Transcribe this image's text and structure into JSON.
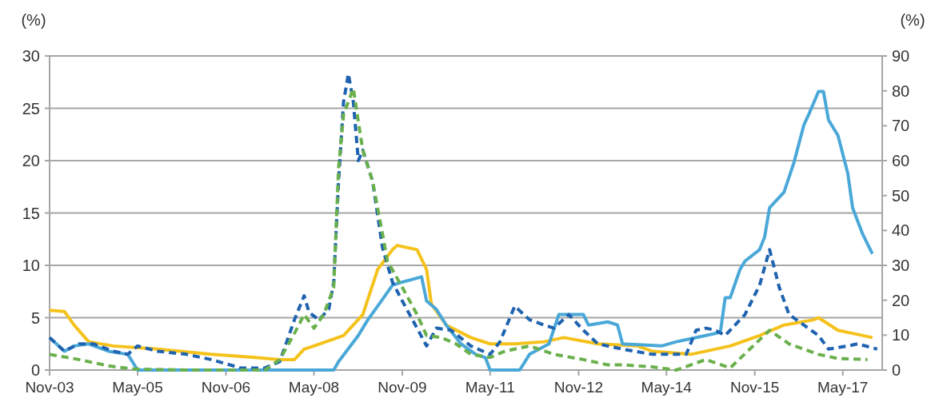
{
  "chart_data": {
    "type": "line",
    "ylabel": "(%)",
    "y2label": "(%)",
    "xlim": [
      "2003-11",
      "2018-01"
    ],
    "xticks": [
      {
        "value": "2003-11",
        "label": "Nov-03"
      },
      {
        "value": "2005-05",
        "label": "May-05"
      },
      {
        "value": "2006-11",
        "label": "Nov-06"
      },
      {
        "value": "2008-05",
        "label": "May-08"
      },
      {
        "value": "2009-11",
        "label": "Nov-09"
      },
      {
        "value": "2011-05",
        "label": "May-11"
      },
      {
        "value": "2012-11",
        "label": "Nov-12"
      },
      {
        "value": "2014-05",
        "label": "May-14"
      },
      {
        "value": "2015-11",
        "label": "Nov-15"
      },
      {
        "value": "2017-05",
        "label": "May-17"
      }
    ],
    "ylim": [
      0,
      30
    ],
    "yticks": [
      0,
      5,
      10,
      15,
      20,
      25,
      30
    ],
    "y2lim": [
      0,
      90
    ],
    "y2ticks": [
      0,
      10,
      20,
      30,
      40,
      50,
      60,
      70,
      80,
      90
    ],
    "grid": "y",
    "series": [
      {
        "color": "#f5c21b",
        "line_style": "solid",
        "x": [
          "2003-11",
          "2004-02",
          "2004-04",
          "2004-07",
          "2004-12",
          "2005-09",
          "2006-08",
          "2007-05",
          "2007-10",
          "2008-01",
          "2008-03",
          "2008-05",
          "2008-11",
          "2009-03",
          "2009-06",
          "2009-09",
          "2009-10",
          "2010-02",
          "2010-04",
          "2010-05",
          "2010-08",
          "2011-01",
          "2011-05",
          "2011-10",
          "2012-04",
          "2012-08",
          "2013-03",
          "2013-11",
          "2014-02",
          "2014-10",
          "2015-06",
          "2015-12",
          "2016-05",
          "2016-11",
          "2016-12",
          "2017-04",
          "2017-07",
          "2017-11"
        ],
        "values": [
          5.7,
          5.6,
          4.3,
          2.7,
          2.3,
          2.0,
          1.5,
          1.2,
          1.0,
          1.0,
          2.0,
          2.3,
          3.3,
          5.3,
          9.6,
          11.5,
          11.9,
          11.5,
          9.6,
          6.3,
          4.3,
          3.1,
          2.5,
          2.5,
          2.7,
          3.1,
          2.5,
          2.3,
          1.8,
          1.5,
          2.3,
          3.3,
          4.3,
          4.8,
          5.0,
          3.8,
          3.5,
          3.1
        ]
      },
      {
        "color": "#4aa8d8",
        "line_style": "solid",
        "x": [
          "2003-11",
          "2004-02",
          "2004-04",
          "2004-07",
          "2004-11",
          "2005-03",
          "2005-05",
          "2008-09",
          "2008-10",
          "2009-02",
          "2009-04",
          "2009-06",
          "2009-09",
          "2009-11",
          "2010-03",
          "2010-04",
          "2010-06",
          "2010-08",
          "2010-11",
          "2011-02",
          "2011-04",
          "2011-05",
          "2011-11",
          "2012-01",
          "2012-05",
          "2012-07",
          "2012-12",
          "2013-01",
          "2013-05",
          "2013-07",
          "2013-08",
          "2014-04",
          "2014-07",
          "2014-09",
          "2015-01",
          "2015-04",
          "2015-05",
          "2015-06",
          "2015-08",
          "2015-09",
          "2015-12",
          "2016-01",
          "2016-02",
          "2016-05",
          "2016-07",
          "2016-09",
          "2016-10",
          "2016-12",
          "2017-01",
          "2017-02",
          "2017-04",
          "2017-06",
          "2017-07",
          "2017-09",
          "2017-11"
        ],
        "values": [
          3.1,
          1.8,
          2.3,
          2.5,
          1.8,
          1.5,
          0,
          0,
          0.8,
          3.3,
          4.8,
          6.1,
          8.1,
          8.4,
          8.9,
          6.6,
          5.8,
          4.3,
          2.5,
          1.5,
          1.2,
          0,
          0,
          1.5,
          2.5,
          5.3,
          5.3,
          4.3,
          4.6,
          4.3,
          2.5,
          2.3,
          2.7,
          2.9,
          3.3,
          3.6,
          6.9,
          6.9,
          9.6,
          10.4,
          11.5,
          12.7,
          15.5,
          17,
          19.8,
          23.4,
          24.4,
          26.6,
          26.6,
          23.9,
          22.4,
          18.8,
          15.5,
          13,
          11.1
        ]
      },
      {
        "color": "#1f63b0",
        "line_style": "dashed",
        "x": [
          "2003-11",
          "2004-02",
          "2004-05",
          "2004-08",
          "2004-12",
          "2005-03",
          "2005-05",
          "2005-09",
          "2006-03",
          "2006-08",
          "2007-02",
          "2007-07",
          "2007-10",
          "2008-01",
          "2008-03",
          "2008-04",
          "2008-06",
          "2008-08",
          "2008-09",
          "2008-10",
          "2008-11",
          "2008-12",
          "2009-01",
          "2009-02",
          "2009-03",
          "2009-05",
          "2009-07",
          "2009-09",
          "2009-11",
          "2010-02",
          "2010-04",
          "2010-06",
          "2010-09",
          "2011-01",
          "2011-05",
          "2011-07",
          "2011-10",
          "2012-01",
          "2012-04",
          "2012-06",
          "2012-09",
          "2012-12",
          "2013-03",
          "2013-08",
          "2014-02",
          "2014-09",
          "2014-11",
          "2015-01",
          "2015-03",
          "2015-05",
          "2015-09",
          "2015-12",
          "2016-02",
          "2016-04",
          "2016-06",
          "2016-09",
          "2016-12",
          "2017-02",
          "2017-06",
          "2017-08",
          "2017-12"
        ],
        "values": [
          3.1,
          1.8,
          2.5,
          2.5,
          1.8,
          1.5,
          2.3,
          1.8,
          1.5,
          1.0,
          0.2,
          0.2,
          0.8,
          4.8,
          7.1,
          5.5,
          4.8,
          5.8,
          8.4,
          18,
          25.6,
          28.3,
          25.6,
          20,
          21,
          18,
          11.7,
          8.4,
          6.6,
          4,
          2.3,
          4,
          3.8,
          2.3,
          1.5,
          2.7,
          6.1,
          4.8,
          4.3,
          4,
          5.3,
          3.8,
          2.5,
          2.0,
          1.5,
          1.5,
          3.8,
          4,
          3.8,
          3.3,
          5.3,
          8.1,
          11.5,
          7.9,
          5.3,
          4.3,
          3.3,
          2.0,
          2.3,
          2.5,
          2.0
        ]
      },
      {
        "color": "#6ab04c",
        "line_style": "dashed",
        "x": [
          "2003-11",
          "2004-05",
          "2004-11",
          "2005-04",
          "2006-03",
          "2007-07",
          "2007-10",
          "2008-01",
          "2008-03",
          "2008-05",
          "2008-07",
          "2008-09",
          "2008-10",
          "2008-11",
          "2009-01",
          "2009-02",
          "2009-03",
          "2009-05",
          "2009-07",
          "2009-08",
          "2009-11",
          "2010-02",
          "2010-04",
          "2010-07",
          "2010-10",
          "2011-01",
          "2011-05",
          "2011-08",
          "2012-01",
          "2012-06",
          "2012-12",
          "2013-05",
          "2013-08",
          "2014-02",
          "2014-07",
          "2015-01",
          "2015-06",
          "2015-10",
          "2016-02",
          "2016-06",
          "2016-12",
          "2017-04",
          "2017-10"
        ],
        "values": [
          1.5,
          1.0,
          0.4,
          0.1,
          0,
          0,
          1.0,
          3.5,
          5.3,
          4,
          5.3,
          7.9,
          19.3,
          24.4,
          26.9,
          23.7,
          21,
          18,
          13,
          10.4,
          7.9,
          5.3,
          3.3,
          3.1,
          2.5,
          1.5,
          1.2,
          1.8,
          2.3,
          1.5,
          1.0,
          0.5,
          0.5,
          0.3,
          0,
          1.0,
          0.2,
          2,
          3.8,
          2.5,
          1.5,
          1.1,
          1.0
        ]
      }
    ]
  }
}
